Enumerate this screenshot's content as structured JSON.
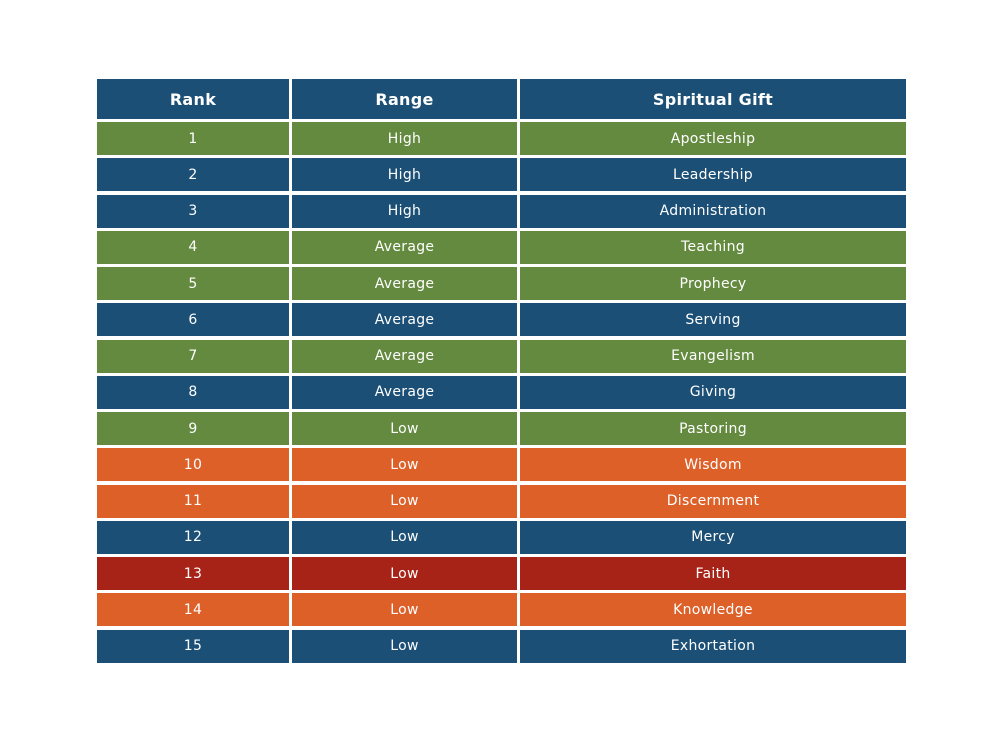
{
  "colors": {
    "header": "#1b4f76",
    "blue": "#1b4f76",
    "green": "#638a3f",
    "orange": "#de6029",
    "red": "#a72318"
  },
  "table": {
    "headers": [
      "Rank",
      "Range",
      "Spiritual Gift"
    ],
    "rows": [
      {
        "rank": "1",
        "range": "High",
        "gift": "Apostleship",
        "color": "green"
      },
      {
        "rank": "2",
        "range": "High",
        "gift": "Leadership",
        "color": "blue"
      },
      {
        "rank": "3",
        "range": "High",
        "gift": "Administration",
        "color": "blue"
      },
      {
        "rank": "4",
        "range": "Average",
        "gift": "Teaching",
        "color": "green"
      },
      {
        "rank": "5",
        "range": "Average",
        "gift": "Prophecy",
        "color": "green"
      },
      {
        "rank": "6",
        "range": "Average",
        "gift": "Serving",
        "color": "blue"
      },
      {
        "rank": "7",
        "range": "Average",
        "gift": "Evangelism",
        "color": "green"
      },
      {
        "rank": "8",
        "range": "Average",
        "gift": "Giving",
        "color": "blue"
      },
      {
        "rank": "9",
        "range": "Low",
        "gift": "Pastoring",
        "color": "green"
      },
      {
        "rank": "10",
        "range": "Low",
        "gift": "Wisdom",
        "color": "orange"
      },
      {
        "rank": "11",
        "range": "Low",
        "gift": "Discernment",
        "color": "orange"
      },
      {
        "rank": "12",
        "range": "Low",
        "gift": "Mercy",
        "color": "blue"
      },
      {
        "rank": "13",
        "range": "Low",
        "gift": "Faith",
        "color": "red"
      },
      {
        "rank": "14",
        "range": "Low",
        "gift": "Knowledge",
        "color": "orange"
      },
      {
        "rank": "15",
        "range": "Low",
        "gift": "Exhortation",
        "color": "blue"
      }
    ]
  }
}
